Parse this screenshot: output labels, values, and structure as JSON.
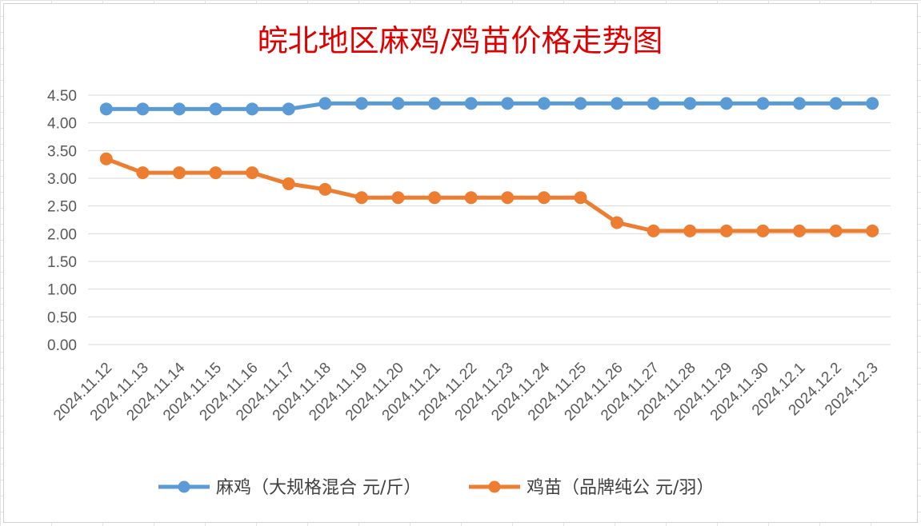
{
  "chart_data": {
    "type": "line",
    "title": "皖北地区麻鸡/鸡苗价格走势图",
    "title_color": "#e00000",
    "xlabel": "",
    "ylabel": "",
    "ylim": [
      0,
      4.5
    ],
    "yticks": [
      "0.00",
      "0.50",
      "1.00",
      "1.50",
      "2.00",
      "2.50",
      "3.00",
      "3.50",
      "4.00",
      "4.50"
    ],
    "grid": true,
    "legend_position": "bottom",
    "categories": [
      "2024.11.12",
      "2024.11.13",
      "2024.11.14",
      "2024.11.15",
      "2024.11.16",
      "2024.11.17",
      "2024.11.18",
      "2024.11.19",
      "2024.11.20",
      "2024.11.21",
      "2024.11.22",
      "2024.11.23",
      "2024.11.24",
      "2024.11.25",
      "2024.11.26",
      "2024.11.27",
      "2024.11.28",
      "2024.11.29",
      "2024.11.30",
      "2024.12.1",
      "2024.12.2",
      "2024.12.3"
    ],
    "series": [
      {
        "name": "麻鸡（大规格混合 元/斤）",
        "color": "#5b9bd5",
        "values": [
          4.25,
          4.25,
          4.25,
          4.25,
          4.25,
          4.25,
          4.35,
          4.35,
          4.35,
          4.35,
          4.35,
          4.35,
          4.35,
          4.35,
          4.35,
          4.35,
          4.35,
          4.35,
          4.35,
          4.35,
          4.35,
          4.35
        ]
      },
      {
        "name": "鸡苗（品牌纯公 元/羽）",
        "color": "#ed7d31",
        "values": [
          3.35,
          3.1,
          3.1,
          3.1,
          3.1,
          2.9,
          2.8,
          2.65,
          2.65,
          2.65,
          2.65,
          2.65,
          2.65,
          2.65,
          2.2,
          2.05,
          2.05,
          2.05,
          2.05,
          2.05,
          2.05,
          2.05
        ]
      }
    ]
  }
}
